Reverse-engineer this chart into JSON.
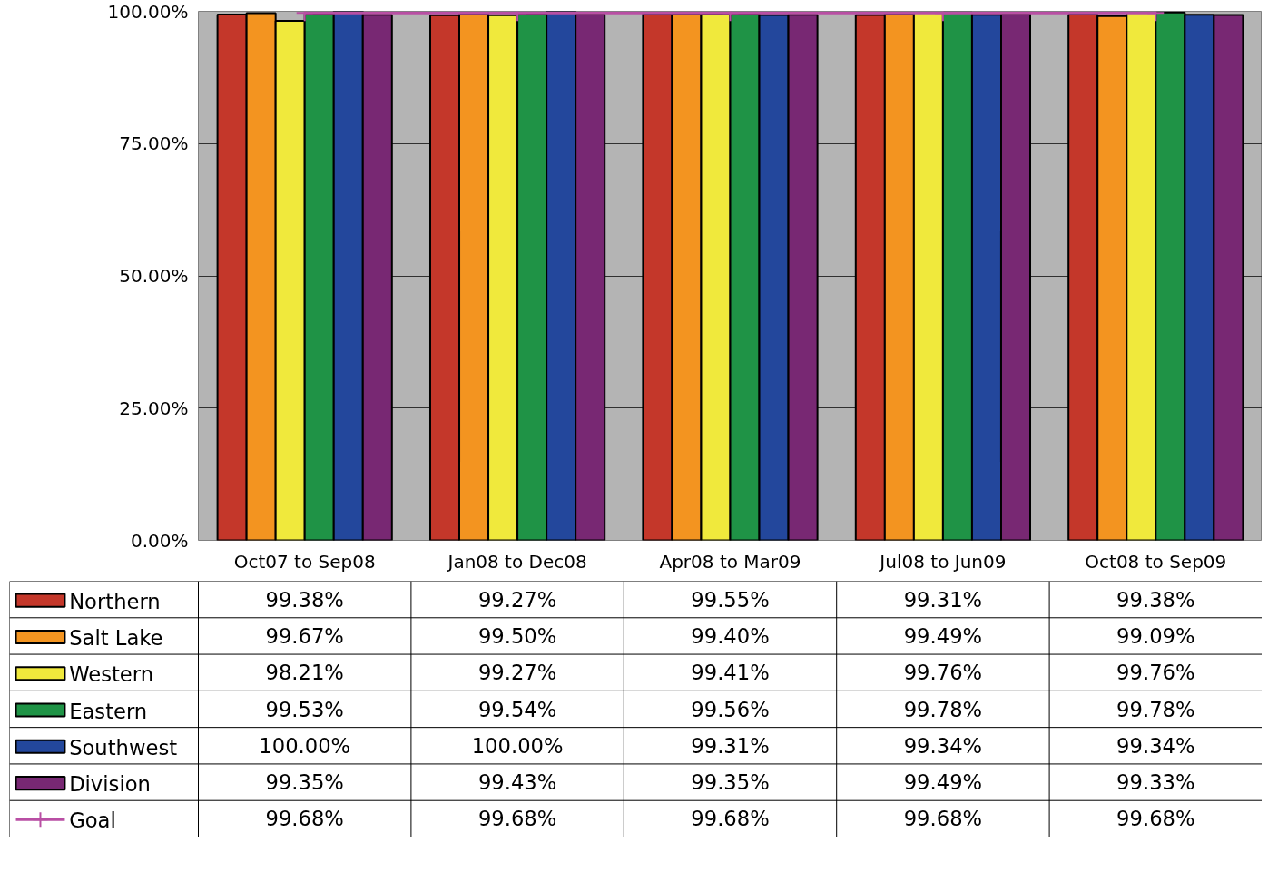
{
  "chart_data": {
    "type": "bar",
    "categories": [
      "Oct07 to Sep08",
      "Jan08 to Dec08",
      "Apr08 to Mar09",
      "Jul08 to Jun09",
      "Oct08 to Sep09"
    ],
    "ylim": [
      0,
      100
    ],
    "yticks": [
      {
        "value": 0,
        "label": "0.00%"
      },
      {
        "value": 25,
        "label": "25.00%"
      },
      {
        "value": 50,
        "label": "50.00%"
      },
      {
        "value": 75,
        "label": "75.00%"
      },
      {
        "value": 100,
        "label": "100.00%"
      }
    ],
    "grid": "y",
    "legend": "bottom left",
    "series": [
      {
        "name": "Northern",
        "color": "#c4372a",
        "values": [
          99.38,
          99.27,
          99.55,
          99.31,
          99.38
        ],
        "value_labels": [
          "99.38%",
          "99.27%",
          "99.55%",
          "99.31%",
          "99.38%"
        ]
      },
      {
        "name": "Salt Lake",
        "color": "#f39420",
        "values": [
          99.67,
          99.5,
          99.4,
          99.49,
          99.09
        ],
        "value_labels": [
          "99.67%",
          "99.50%",
          "99.40%",
          "99.49%",
          "99.09%"
        ]
      },
      {
        "name": "Western",
        "color": "#f0e93c",
        "values": [
          98.21,
          99.27,
          99.41,
          99.76,
          99.76
        ],
        "value_labels": [
          "98.21%",
          "99.27%",
          "99.41%",
          "99.76%",
          "99.76%"
        ]
      },
      {
        "name": "Eastern",
        "color": "#1f9346",
        "values": [
          99.53,
          99.54,
          99.56,
          99.78,
          99.78
        ],
        "value_labels": [
          "99.53%",
          "99.54%",
          "99.56%",
          "99.78%",
          "99.78%"
        ]
      },
      {
        "name": "Southwest",
        "color": "#23479c",
        "values": [
          100.0,
          100.0,
          99.31,
          99.34,
          99.34
        ],
        "value_labels": [
          "100.00%",
          "100.00%",
          "99.31%",
          "99.34%",
          "99.34%"
        ]
      },
      {
        "name": "Division",
        "color": "#782873",
        "values": [
          99.35,
          99.43,
          99.35,
          99.49,
          99.33
        ],
        "value_labels": [
          "99.35%",
          "99.43%",
          "99.35%",
          "99.49%",
          "99.33%"
        ]
      },
      {
        "name": "Goal",
        "type": "line",
        "color": "#b94fa4",
        "marker": "cross",
        "values": [
          99.68,
          99.68,
          99.68,
          99.68,
          99.68
        ],
        "value_labels": [
          "99.68%",
          "99.68%",
          "99.68%",
          "99.68%",
          "99.68%"
        ]
      }
    ]
  }
}
